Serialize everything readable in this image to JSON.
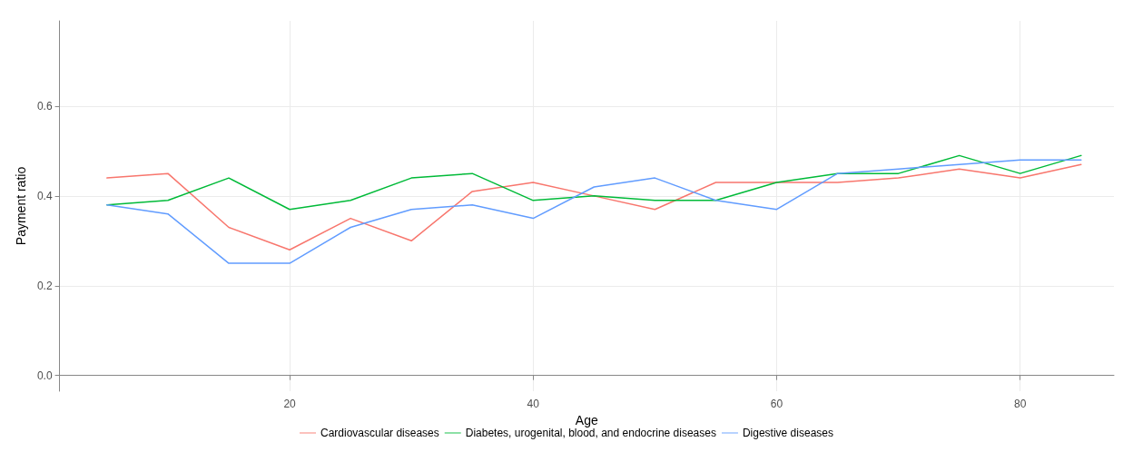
{
  "chart_data": {
    "type": "line",
    "xlabel": "Age",
    "ylabel": "Payment ratio",
    "xlim": [
      1.1,
      87.7
    ],
    "xticks": [
      20,
      40,
      60,
      80
    ],
    "ylim": [
      -0.035,
      0.79
    ],
    "yticks": [
      {
        "value": 0,
        "label": "0.0"
      },
      0.2,
      0.4,
      0.6
    ],
    "grid": true,
    "legend": "bottom",
    "marker": "none",
    "line_style": "solid",
    "x": [
      5,
      10,
      15,
      20,
      25,
      30,
      35,
      40,
      45,
      50,
      55,
      60,
      65,
      70,
      75,
      80,
      85
    ],
    "series": [
      {
        "name": "Cardiovascular diseases",
        "color": "#f8766d",
        "values": [
          0.44,
          0.45,
          0.33,
          0.28,
          0.35,
          0.3,
          0.41,
          0.43,
          0.4,
          0.37,
          0.43,
          0.43,
          0.43,
          0.44,
          0.46,
          0.44,
          0.47
        ]
      },
      {
        "name": "Diabetes, urogenital, blood, and endocrine diseases",
        "color": "#00ba38",
        "values": [
          0.38,
          0.39,
          0.44,
          0.37,
          0.39,
          0.44,
          0.45,
          0.39,
          0.4,
          0.39,
          0.39,
          0.43,
          0.45,
          0.45,
          0.49,
          0.45,
          0.49
        ]
      },
      {
        "name": "Digestive diseases",
        "color": "#619cff",
        "values": [
          0.38,
          0.36,
          0.25,
          0.25,
          0.33,
          0.37,
          0.38,
          0.35,
          0.42,
          0.44,
          0.39,
          0.37,
          0.45,
          0.46,
          0.47,
          0.48,
          0.48
        ]
      }
    ]
  }
}
